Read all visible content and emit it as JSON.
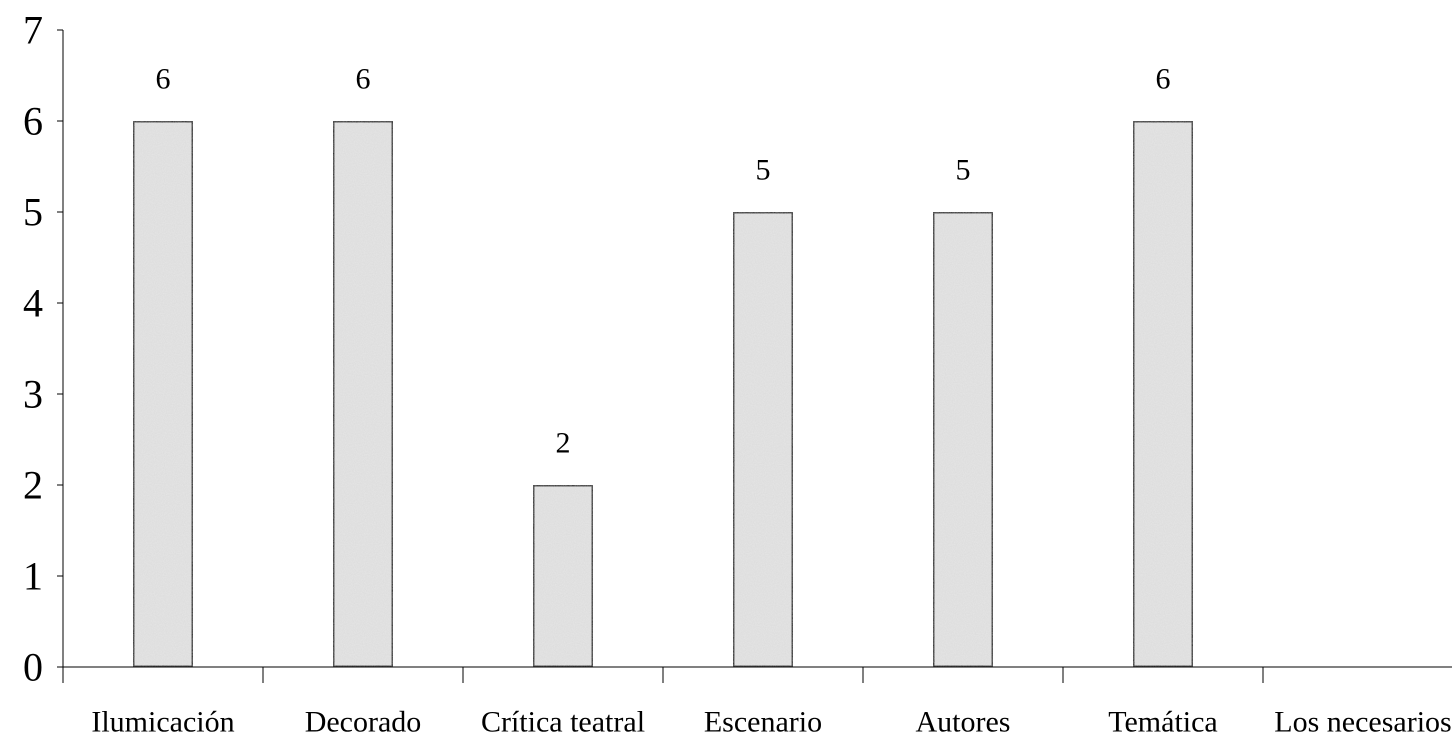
{
  "chart_data": {
    "type": "bar",
    "categories": [
      "Ilumicación",
      "Decorado",
      "Crítica teatral",
      "Escenario",
      "Autores",
      "Temática",
      "Los necesarios"
    ],
    "values": [
      6,
      6,
      2,
      5,
      5,
      6,
      0
    ],
    "data_labels": [
      "6",
      "6",
      "2",
      "5",
      "5",
      "6",
      ""
    ],
    "title": "",
    "xlabel": "",
    "ylabel": "",
    "ylim": [
      0,
      7
    ],
    "yticks": [
      "0",
      "1",
      "2",
      "3",
      "4",
      "5",
      "6",
      "7"
    ],
    "grid": false,
    "legend": "none",
    "bar_fill": "#e6e6e6",
    "bar_stroke": "#000000"
  }
}
